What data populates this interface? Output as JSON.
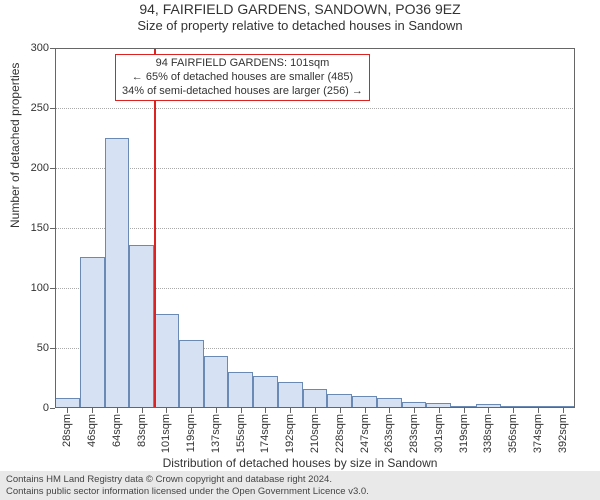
{
  "title": "94, FAIRFIELD GARDENS, SANDOWN, PO36 9EZ",
  "subtitle": "Size of property relative to detached houses in Sandown",
  "ylabel": "Number of detached properties",
  "xlabel": "Distribution of detached houses by size in Sandown",
  "chart": {
    "type": "histogram",
    "background_color": "#ffffff",
    "border_color": "#666666",
    "grid_color": "#aaaaaa",
    "bar_fill": "#d6e2f3",
    "bar_stroke": "#6b89b5",
    "marker_color": "#dd2222",
    "ylim": [
      0,
      300
    ],
    "yticks": [
      0,
      50,
      100,
      150,
      200,
      250,
      300
    ],
    "xticks": [
      "28sqm",
      "46sqm",
      "64sqm",
      "83sqm",
      "101sqm",
      "119sqm",
      "137sqm",
      "155sqm",
      "174sqm",
      "192sqm",
      "210sqm",
      "228sqm",
      "247sqm",
      "263sqm",
      "283sqm",
      "301sqm",
      "319sqm",
      "338sqm",
      "356sqm",
      "374sqm",
      "392sqm"
    ],
    "values": [
      8,
      126,
      225,
      136,
      78,
      57,
      43,
      30,
      27,
      22,
      16,
      12,
      10,
      8,
      5,
      4,
      2,
      3,
      2,
      1,
      1
    ],
    "marker_index": 4,
    "title_fontsize": 14,
    "subtitle_fontsize": 13,
    "label_fontsize": 12,
    "tick_fontsize": 11,
    "annotation_fontsize": 11
  },
  "annotation": {
    "line1": "94 FAIRFIELD GARDENS: 101sqm",
    "line2": "← 65% of detached houses are smaller (485)",
    "line3": "34% of semi-detached houses are larger (256) →"
  },
  "copyright": {
    "line1": "Contains HM Land Registry data © Crown copyright and database right 2024.",
    "line2": "Contains public sector information licensed under the Open Government Licence v3.0."
  }
}
